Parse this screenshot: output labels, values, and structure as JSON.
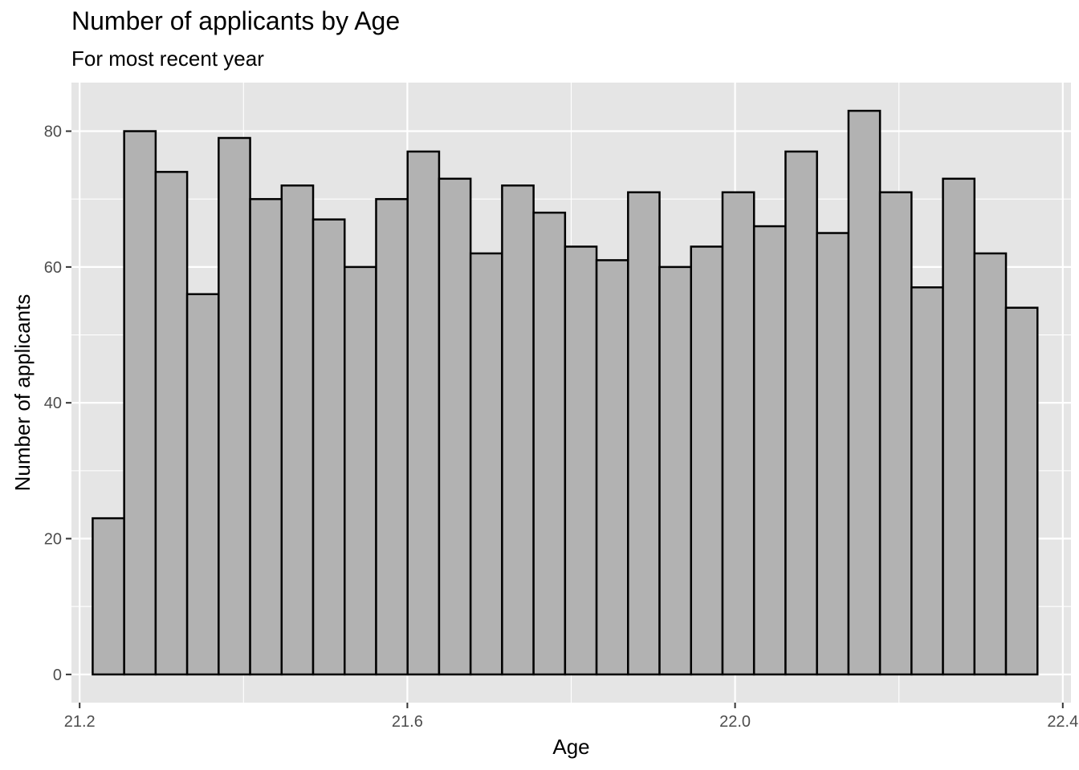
{
  "chart_data": {
    "type": "bar",
    "title": "Number of applicants by Age",
    "subtitle": "For most recent year",
    "xlabel": "Age",
    "ylabel": "Number of applicants",
    "xlim": [
      21.19,
      22.41
    ],
    "ylim": [
      -4.15,
      87.15
    ],
    "xticks": [
      21.2,
      21.6,
      22.0,
      22.4
    ],
    "xtick_labels": [
      "21.2",
      "21.6",
      "22.0",
      "22.4"
    ],
    "yticks": [
      0,
      20,
      40,
      60,
      80
    ],
    "ytick_labels": [
      "0",
      "20",
      "40",
      "60",
      "80"
    ],
    "bin_start": 21.2159,
    "bin_width": 0.03844,
    "values": [
      23,
      80,
      74,
      56,
      79,
      70,
      72,
      67,
      60,
      70,
      77,
      73,
      62,
      72,
      68,
      63,
      61,
      71,
      60,
      63,
      71,
      66,
      77,
      65,
      83,
      71,
      57,
      73,
      62,
      54
    ],
    "bar_fill": "#b2b2b2",
    "bar_stroke": "#000000",
    "panel_background": "#e5e5e5",
    "grid": true,
    "grid_color": "#ffffff"
  }
}
